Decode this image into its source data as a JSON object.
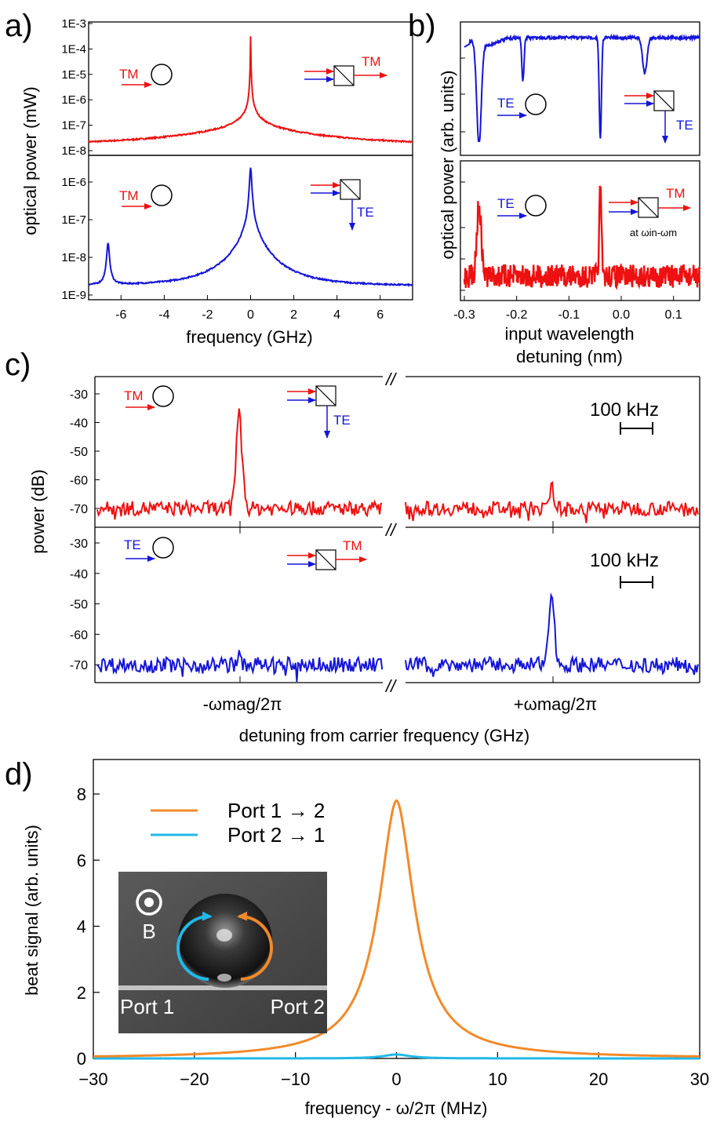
{
  "colors": {
    "red": "#ee1111",
    "blue": "#1515d8",
    "orange": "#f28a2a",
    "cyan": "#22b8e8"
  },
  "panels": {
    "a": {
      "letter": "a)",
      "ylabel": "optical power (mW)",
      "xlabel": "frequency (GHz)",
      "top_ticks": [
        "1E-3",
        "1E-4",
        "1E-5",
        "1E-6",
        "1E-7",
        "1E-8"
      ],
      "bottom_ticks": [
        "1E-6",
        "1E-7",
        "1E-8",
        "1E-9"
      ],
      "x_ticks": [
        "-6",
        "-4",
        "-2",
        "0",
        "2",
        "4",
        "6"
      ],
      "inset_top": {
        "left": "TM",
        "right": "TM"
      },
      "inset_bottom": {
        "left": "TM",
        "right": "TE"
      }
    },
    "b": {
      "letter": "b)",
      "ylabel": "optical power (arb. units)",
      "xlabel_1": "input wavelength",
      "xlabel_2": "detuning (nm)",
      "x_ticks": [
        "-0.3",
        "-0.2",
        "-0.1",
        "0.0",
        "0.1"
      ],
      "inset_top": {
        "left": "TE",
        "right": "TE"
      },
      "inset_bottom": {
        "left": "TE",
        "right": "TM",
        "note": "at ωin-ωm"
      }
    },
    "c": {
      "letter": "c)",
      "ylabel": "power (dB)",
      "xlabel": "detuning from carrier frequency (GHz)",
      "y_ticks": [
        "-30",
        "-40",
        "-50",
        "-60",
        "-70"
      ],
      "x_tick_left": "-ωmag/2π",
      "x_tick_right": "+ωmag/2π",
      "scale_bar": "100 kHz",
      "break_mark": "//",
      "inset_top": {
        "left": "TM",
        "right": "TE"
      },
      "inset_bottom": {
        "left": "TE",
        "right": "TM"
      }
    },
    "d": {
      "letter": "d)",
      "ylabel": "beat signal (arb. units)",
      "xlabel": "frequency - ω/2π  (MHz)",
      "y_ticks": [
        "0",
        "2",
        "4",
        "6",
        "8"
      ],
      "x_ticks": [
        "−30",
        "−20",
        "−10",
        "0",
        "10",
        "20",
        "30"
      ],
      "legend": [
        "Port 1 → 2",
        "Port 2 → 1"
      ],
      "photo": {
        "b_label": "B",
        "port1": "Port 1",
        "port2": "Port 2"
      }
    }
  },
  "chart_data": [
    {
      "panel": "a-top",
      "type": "line",
      "x_range": [
        -7.5,
        7.5
      ],
      "y_log": true,
      "ylim": [
        1e-08,
        0.001
      ],
      "series": [
        {
          "color": "red",
          "peaks": [
            {
              "x": 0,
              "y": 0.0003
            }
          ],
          "baseline": 1.8e-08
        }
      ]
    },
    {
      "panel": "a-bottom",
      "type": "line",
      "x_range": [
        -7.5,
        7.5
      ],
      "y_log": true,
      "ylim": [
        1e-09,
        1e-06
      ],
      "series": [
        {
          "color": "blue",
          "peaks": [
            {
              "x": 0,
              "y": 2.5e-06
            },
            {
              "x": -6.6,
              "y": 2.5e-08
            }
          ],
          "baseline": 1.7e-09
        }
      ]
    },
    {
      "panel": "b-top",
      "type": "line",
      "x_range": [
        -0.3,
        0.15
      ],
      "series": [
        {
          "color": "blue",
          "dips": [
            -0.272,
            -0.188,
            -0.04,
            0.045
          ]
        }
      ]
    },
    {
      "panel": "b-bottom",
      "type": "line",
      "x_range": [
        -0.3,
        0.15
      ],
      "series": [
        {
          "color": "red",
          "peaks": [
            -0.272,
            -0.04
          ]
        }
      ]
    },
    {
      "panel": "c-top",
      "type": "line",
      "ylim": [
        -75,
        -25
      ],
      "series": [
        {
          "color": "red",
          "peaks": [
            {
              "x": "-ωmag/2π",
              "y": -37
            },
            {
              "x": "+ωmag/2π",
              "y": -62
            }
          ],
          "baseline": -70
        }
      ]
    },
    {
      "panel": "c-bottom",
      "type": "line",
      "ylim": [
        -75,
        -25
      ],
      "series": [
        {
          "color": "blue",
          "peaks": [
            {
              "x": "-ωmag/2π",
              "y": -67
            },
            {
              "x": "+ωmag/2π",
              "y": -46
            }
          ],
          "baseline": -70
        }
      ]
    },
    {
      "panel": "d",
      "type": "line",
      "x_range": [
        -30,
        30
      ],
      "ylim": [
        0,
        8.5
      ],
      "series": [
        {
          "name": "Port 1 → 2",
          "color": "orange",
          "peak": {
            "x": 0,
            "y": 7.8
          },
          "width": 4.2
        },
        {
          "name": "Port 2 → 1",
          "color": "cyan",
          "peak": {
            "x": 0,
            "y": 0.12
          },
          "width": 3
        }
      ]
    }
  ]
}
